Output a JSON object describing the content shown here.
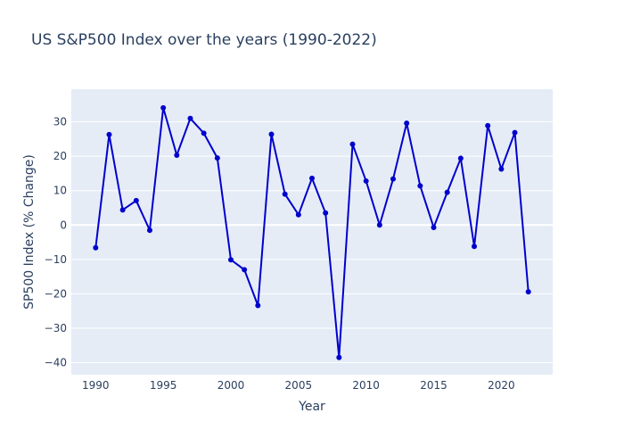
{
  "chart_data": {
    "type": "line",
    "title": "US S&P500 Index over the years (1990-2022)",
    "xlabel": "Year",
    "ylabel": "SP500 Index (% Change)",
    "x_ticks": [
      1990,
      1995,
      2000,
      2005,
      2010,
      2015,
      2020
    ],
    "y_ticks": [
      -40,
      -30,
      -20,
      -10,
      0,
      10,
      20,
      30
    ],
    "xlim": [
      1988.2,
      2023.8
    ],
    "ylim": [
      -43.5,
      39.5
    ],
    "grid": true,
    "line_color": "#0000cd",
    "plot_bg": "#e5ecf6",
    "series": [
      {
        "x": [
          1990,
          1991,
          1992,
          1993,
          1994,
          1995,
          1996,
          1997,
          1998,
          1999,
          2000,
          2001,
          2002,
          2003,
          2004,
          2005,
          2006,
          2007,
          2008,
          2009,
          2010,
          2011,
          2012,
          2013,
          2014,
          2015,
          2016,
          2017,
          2018,
          2019,
          2020,
          2021,
          2022
        ],
        "values": [
          -6.6,
          26.3,
          4.4,
          7.1,
          -1.5,
          34.1,
          20.3,
          31.0,
          26.7,
          19.5,
          -10.1,
          -13.0,
          -23.4,
          26.4,
          9.0,
          3.0,
          13.6,
          3.5,
          -38.5,
          23.5,
          12.8,
          0.0,
          13.4,
          29.6,
          11.4,
          -0.7,
          9.5,
          19.4,
          -6.2,
          28.9,
          16.3,
          26.9,
          -19.4
        ]
      }
    ]
  }
}
